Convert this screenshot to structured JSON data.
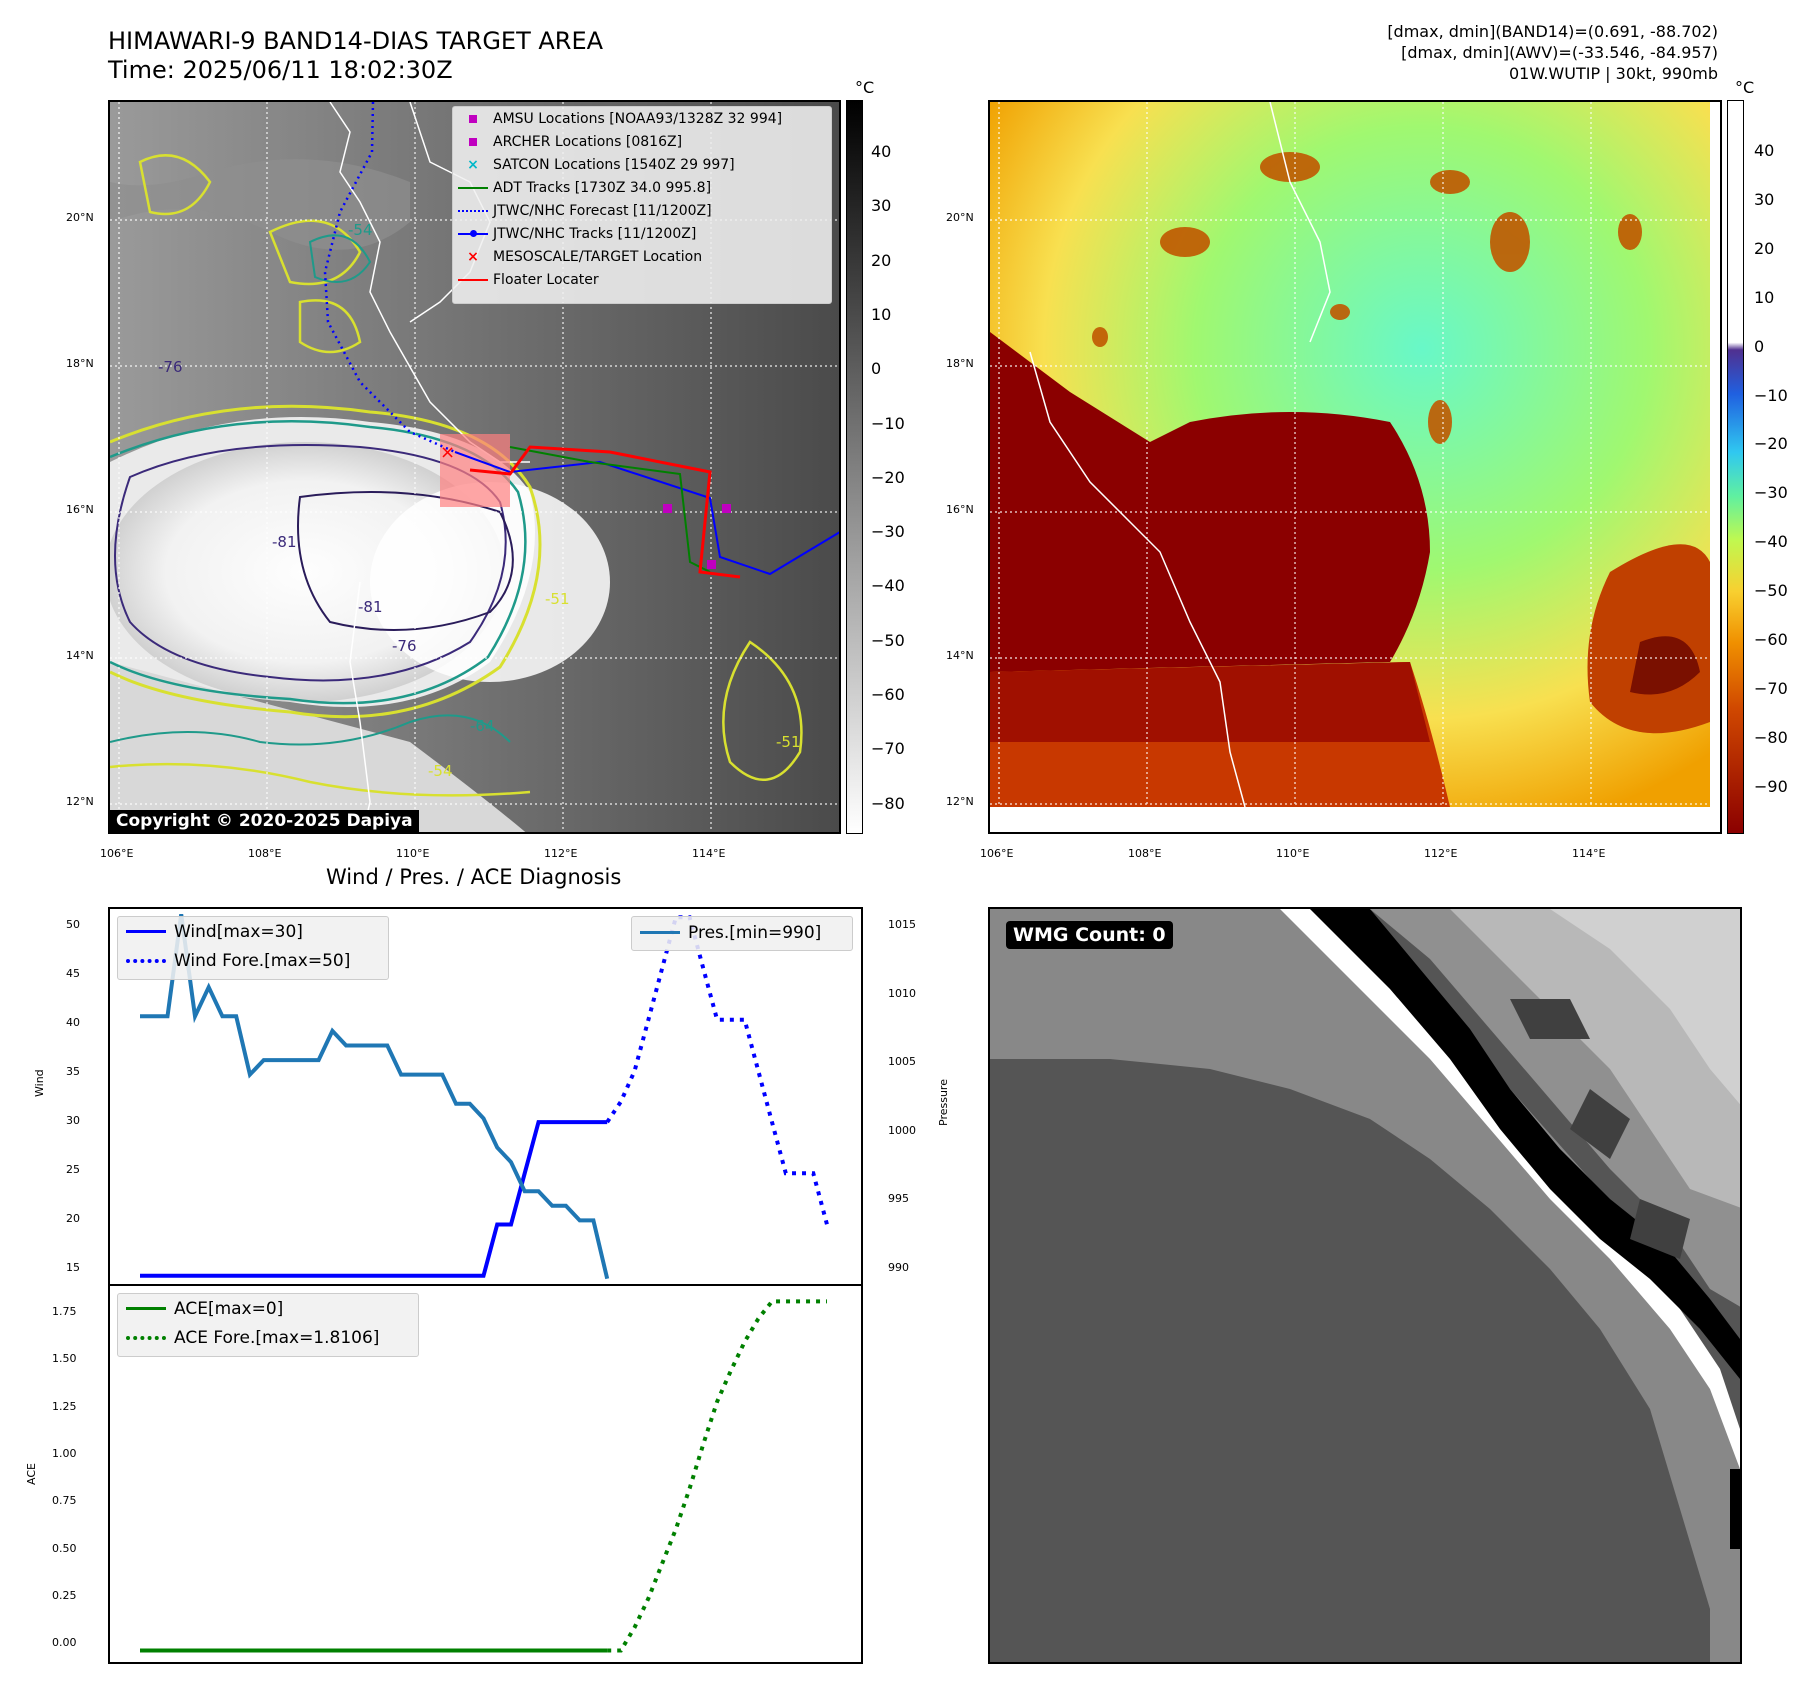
{
  "header": {
    "title_line1": "HIMAWARI-9 BAND14-DIAS TARGET AREA",
    "title_line2": "Time: 2025/06/11 18:02:30Z",
    "right_line1": "[dmax, dmin](BAND14)=(0.691, -88.702)",
    "right_line2": "[dmax, dmin](AWV)=(-33.546, -84.957)",
    "right_line3": "01W.WUTIP | 30kt, 990mb"
  },
  "map_left": {
    "lat_labels": [
      "20°N",
      "18°N",
      "16°N",
      "14°N",
      "12°N"
    ],
    "lon_labels": [
      "106°E",
      "108°E",
      "110°E",
      "112°E",
      "114°E"
    ],
    "contour_labels": [
      "-54",
      "-76",
      "-81",
      "-81",
      "-76",
      "-64",
      "-54",
      "-51",
      "-51"
    ],
    "copyright": "Copyright © 2020-2025 Dapiya",
    "legend": [
      {
        "label": "AMSU Locations [NOAA93/1328Z 32 994]",
        "symbol": "square",
        "color": "#c000c0"
      },
      {
        "label": "ARCHER Locations [0816Z]",
        "symbol": "square",
        "color": "#c000c0"
      },
      {
        "label": "SATCON Locations [1540Z 29 997]",
        "symbol": "x",
        "color": "#00b8c8"
      },
      {
        "label": "ADT Tracks [1730Z 34.0 995.8]",
        "symbol": "line",
        "color": "#008000"
      },
      {
        "label": "JTWC/NHC Forecast [11/1200Z]",
        "symbol": "dotted",
        "color": "#0000ff"
      },
      {
        "label": "JTWC/NHC Tracks [11/1200Z]",
        "symbol": "line-dot",
        "color": "#0000ff"
      },
      {
        "label": "MESOSCALE/TARGET Location",
        "symbol": "x",
        "color": "#ff0000"
      },
      {
        "label": "Floater Locater",
        "symbol": "line",
        "color": "#ff0000"
      }
    ],
    "colorbar_unit": "°C",
    "colorbar_ticks": [
      "40",
      "30",
      "20",
      "10",
      "0",
      "−10",
      "−20",
      "−30",
      "−40",
      "−50",
      "−60",
      "−70",
      "−80"
    ]
  },
  "map_right": {
    "lat_labels": [
      "20°N",
      "18°N",
      "16°N",
      "14°N",
      "12°N"
    ],
    "lon_labels": [
      "106°E",
      "108°E",
      "110°E",
      "112°E",
      "114°E"
    ],
    "colorbar_unit": "°C",
    "colorbar_ticks": [
      "40",
      "30",
      "20",
      "10",
      "0",
      "−10",
      "−20",
      "−30",
      "−40",
      "−50",
      "−60",
      "−70",
      "−80",
      "−90"
    ]
  },
  "diagnosis": {
    "title": "Wind / Pres. / ACE Diagnosis",
    "wind_ylabel": "Wind",
    "pres_ylabel": "Pressure",
    "ace_ylabel": "ACE",
    "wind_legend": [
      "Wind[max=30]",
      "Wind Fore.[max=50]"
    ],
    "pres_legend": [
      "Pres.[min=990]"
    ],
    "ace_legend": [
      "ACE[max=0]",
      "ACE Fore.[max=1.8106]"
    ],
    "wind_ticks": [
      "50",
      "45",
      "40",
      "35",
      "30",
      "25",
      "20",
      "15"
    ],
    "pres_ticks": [
      "1015",
      "1010",
      "1005",
      "1000",
      "995",
      "990"
    ],
    "ace_ticks": [
      "1.75",
      "1.50",
      "1.25",
      "1.00",
      "0.75",
      "0.50",
      "0.25",
      "0.00"
    ]
  },
  "wmg": {
    "label": "WMG Count: 0"
  },
  "chart_data": [
    {
      "type": "line",
      "panel": "wind",
      "ylim": [
        14,
        51
      ],
      "series": [
        {
          "name": "Wind[max=30]",
          "color": "#0000ff",
          "style": "solid",
          "x": [
            0,
            1,
            2,
            3,
            4,
            5,
            6,
            7,
            8,
            9,
            10,
            11,
            12,
            13,
            14,
            15,
            16,
            17,
            18,
            19,
            20,
            21,
            22,
            23,
            24,
            25,
            26,
            27,
            28,
            29,
            30,
            31,
            32,
            33,
            34
          ],
          "values": [
            15,
            15,
            15,
            15,
            15,
            15,
            15,
            15,
            15,
            15,
            15,
            15,
            15,
            15,
            15,
            15,
            15,
            15,
            15,
            15,
            15,
            15,
            15,
            15,
            15,
            15,
            20,
            20,
            25,
            30,
            30,
            30,
            30,
            30,
            30
          ]
        },
        {
          "name": "Wind Fore.[max=50]",
          "color": "#0000ff",
          "style": "dotted",
          "x": [
            34,
            35,
            36,
            37,
            38,
            39,
            40,
            41,
            42,
            43,
            44,
            45,
            46,
            47,
            48,
            49,
            50
          ],
          "values": [
            30,
            32,
            35,
            40,
            45,
            50,
            50,
            45,
            40,
            40,
            40,
            35,
            30,
            25,
            25,
            25,
            20
          ]
        }
      ]
    },
    {
      "type": "line",
      "panel": "pressure",
      "ylim": [
        989.5,
        1015.5
      ],
      "series": [
        {
          "name": "Pres.[min=990]",
          "color": "#1f77b4",
          "style": "solid",
          "x": [
            0,
            1,
            2,
            3,
            4,
            5,
            6,
            7,
            8,
            9,
            10,
            11,
            12,
            13,
            14,
            15,
            16,
            17,
            18,
            19,
            20,
            21,
            22,
            23,
            24,
            25,
            26,
            27,
            28,
            29,
            30,
            31,
            32,
            33,
            34
          ],
          "values": [
            1008,
            1008,
            1008,
            1015,
            1008,
            1010,
            1008,
            1008,
            1004,
            1005,
            1005,
            1005,
            1005,
            1005,
            1007,
            1006,
            1006,
            1006,
            1006,
            1004,
            1004,
            1004,
            1004,
            1002,
            1002,
            1001,
            999,
            998,
            996,
            996,
            995,
            995,
            994,
            994,
            990
          ]
        }
      ]
    },
    {
      "type": "line",
      "panel": "ace",
      "ylim": [
        -0.07,
        1.9
      ],
      "series": [
        {
          "name": "ACE[max=0]",
          "color": "#008000",
          "style": "solid",
          "x": [
            0,
            34
          ],
          "values": [
            0,
            0
          ]
        },
        {
          "name": "ACE Fore.[max=1.8106]",
          "color": "#008000",
          "style": "dotted",
          "x": [
            34,
            35,
            36,
            37,
            38,
            39,
            40,
            41,
            42,
            43,
            44,
            45,
            46,
            47,
            48,
            49,
            50
          ],
          "values": [
            0,
            0,
            0.12,
            0.27,
            0.45,
            0.63,
            0.84,
            1.07,
            1.29,
            1.45,
            1.6,
            1.72,
            1.81,
            1.81,
            1.81,
            1.81,
            1.81
          ]
        }
      ]
    }
  ]
}
